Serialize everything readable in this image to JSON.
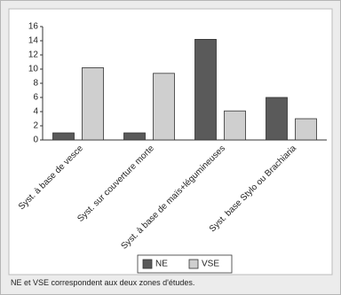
{
  "chart_data": {
    "type": "bar",
    "categories": [
      "Syst. à base de vesce",
      "Syst. sur couverture morte",
      "Syst. à base de maïs+légumineuses",
      "Syst. base Stylo ou Brachiaria"
    ],
    "series": [
      {
        "name": "NE",
        "color": "#5a5a5a",
        "values": [
          1,
          1,
          14.2,
          6
        ]
      },
      {
        "name": "VSE",
        "color": "#cfcfcf",
        "values": [
          10.2,
          9.4,
          4.1,
          3
        ]
      }
    ],
    "ylim": [
      0,
      16
    ],
    "yticks": [
      0,
      2,
      4,
      6,
      8,
      10,
      12,
      14,
      16
    ],
    "legend": "bottom"
  },
  "caption": "NE et VSE correspondent aux deux zones d'études."
}
